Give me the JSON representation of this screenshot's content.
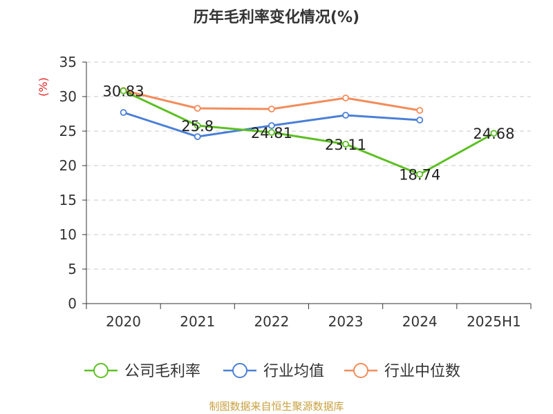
{
  "chart_data": {
    "type": "line",
    "title": "历年毛利率变化情况(%)",
    "ylabel": "(%)",
    "categories": [
      "2020",
      "2021",
      "2022",
      "2023",
      "2024",
      "2025H1"
    ],
    "ylim": [
      0,
      35
    ],
    "yticks": [
      0,
      5,
      10,
      15,
      20,
      25,
      30,
      35
    ],
    "grid": true,
    "legend_position": "bottom",
    "series": [
      {
        "name": "公司毛利率",
        "color": "#5cbf22",
        "values": [
          30.83,
          25.8,
          24.81,
          23.11,
          18.74,
          24.68
        ],
        "labels": [
          "30.83",
          "25.8",
          "24.81",
          "23.11",
          "18.74",
          "24.68"
        ]
      },
      {
        "name": "行业均值",
        "color": "#4a7fd6",
        "values": [
          27.7,
          24.2,
          25.8,
          27.3,
          26.6,
          null
        ]
      },
      {
        "name": "行业中位数",
        "color": "#f28c5a",
        "values": [
          30.9,
          28.3,
          28.2,
          29.8,
          28.0,
          null
        ]
      }
    ],
    "source": "制图数据来自恒生聚源数据库"
  }
}
